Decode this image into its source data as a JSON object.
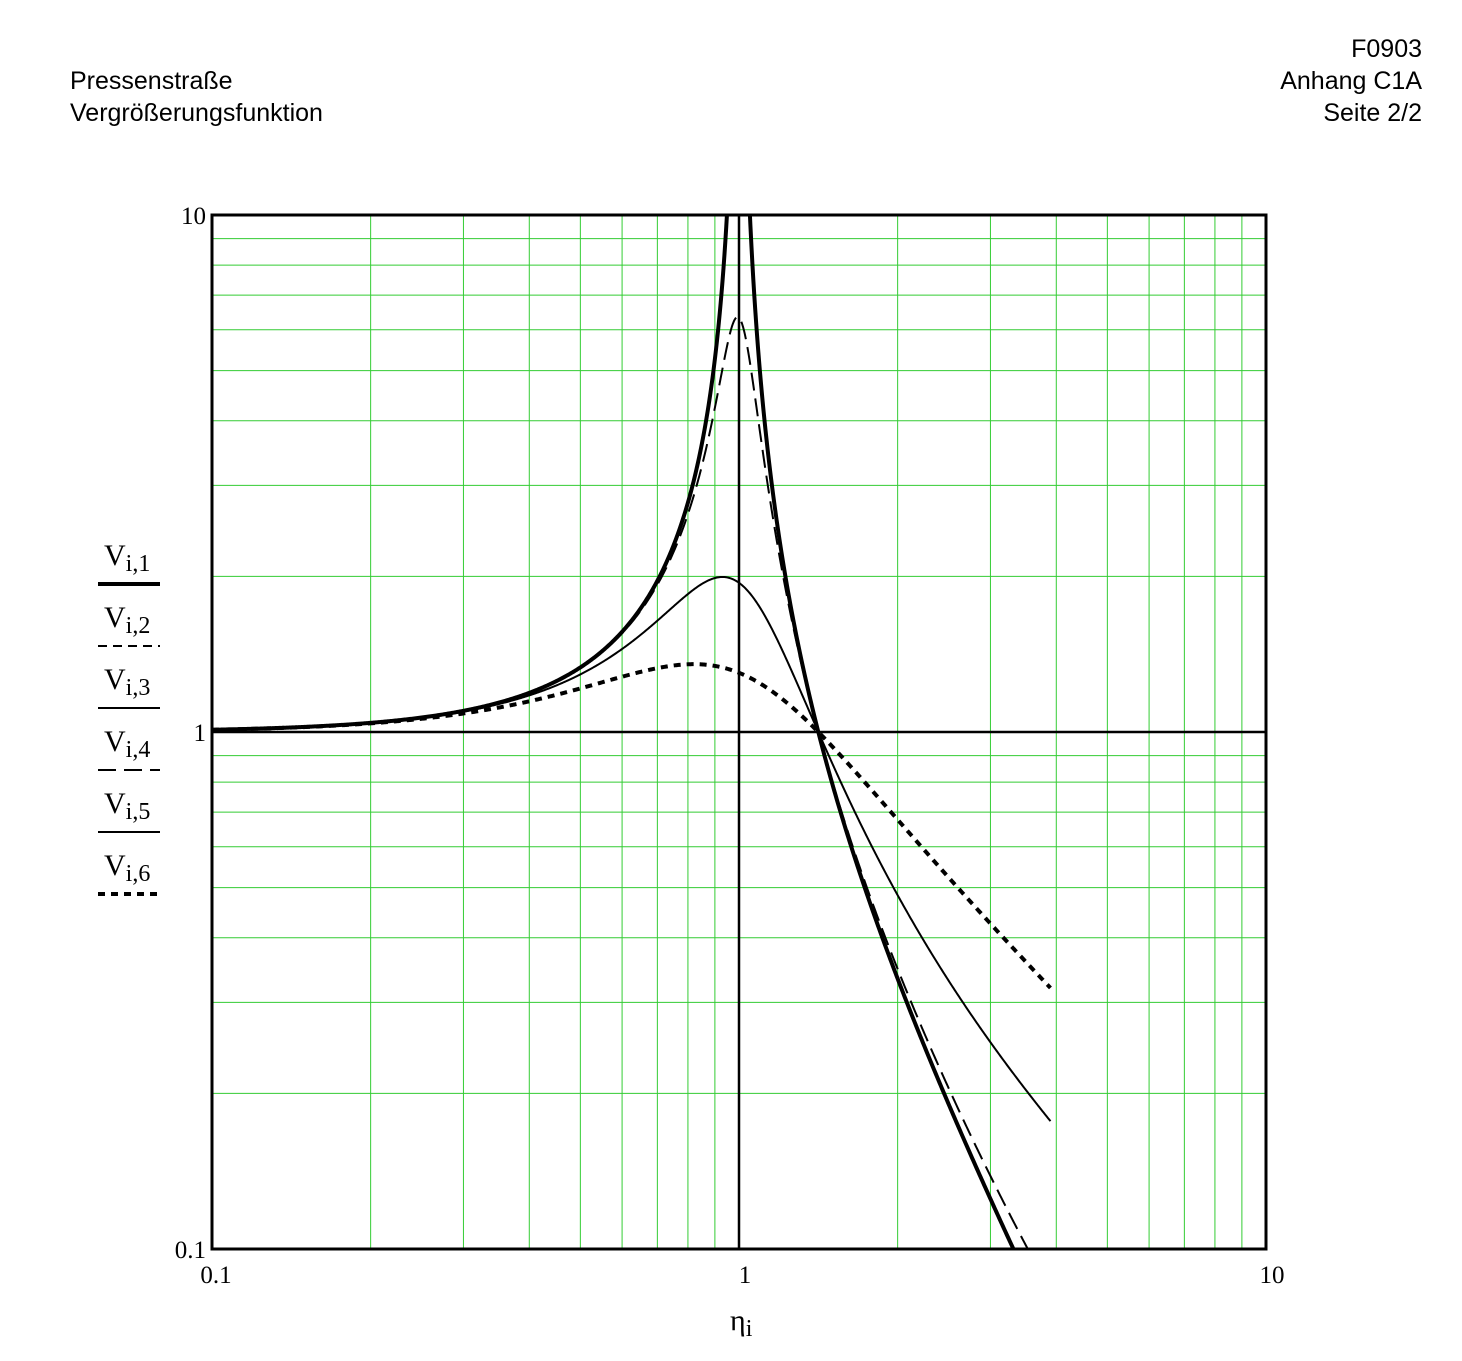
{
  "header": {
    "left": [
      "Pressenstraße",
      "Vergrößerungsfunktion"
    ],
    "right": [
      "F0903",
      "Anhang C1A",
      "Seite 2/2"
    ]
  },
  "chart_data": {
    "type": "line",
    "title": "",
    "xlabel": {
      "base": "η",
      "sub": "i"
    },
    "ylabel": "",
    "xscale": "log",
    "yscale": "log",
    "xlim": [
      0.1,
      10
    ],
    "ylim": [
      0.1,
      10
    ],
    "x_ticks": [
      "0.1",
      "1",
      "10"
    ],
    "y_ticks": [
      "0.1",
      "1",
      "10"
    ],
    "grid": true,
    "grid_color": "#33cc33",
    "legend_position": "left",
    "eta_range": [
      0.1,
      3.9
    ],
    "series": [
      {
        "name": "V",
        "sub": "i,1",
        "zeta": 0.0,
        "style": "solid",
        "width": 4
      },
      {
        "name": "V",
        "sub": "i,2",
        "zeta": 0.0,
        "style": "dashed-short",
        "width": 2
      },
      {
        "name": "V",
        "sub": "i,3",
        "zeta": 0.0,
        "style": "solid",
        "width": 2
      },
      {
        "name": "V",
        "sub": "i,4",
        "zeta": 0.08,
        "style": "dashed-long",
        "width": 2
      },
      {
        "name": "V",
        "sub": "i,5",
        "zeta": 0.3,
        "style": "solid",
        "width": 2
      },
      {
        "name": "V",
        "sub": "i,6",
        "zeta": 0.6,
        "style": "dotted-thick",
        "width": 4
      }
    ]
  }
}
